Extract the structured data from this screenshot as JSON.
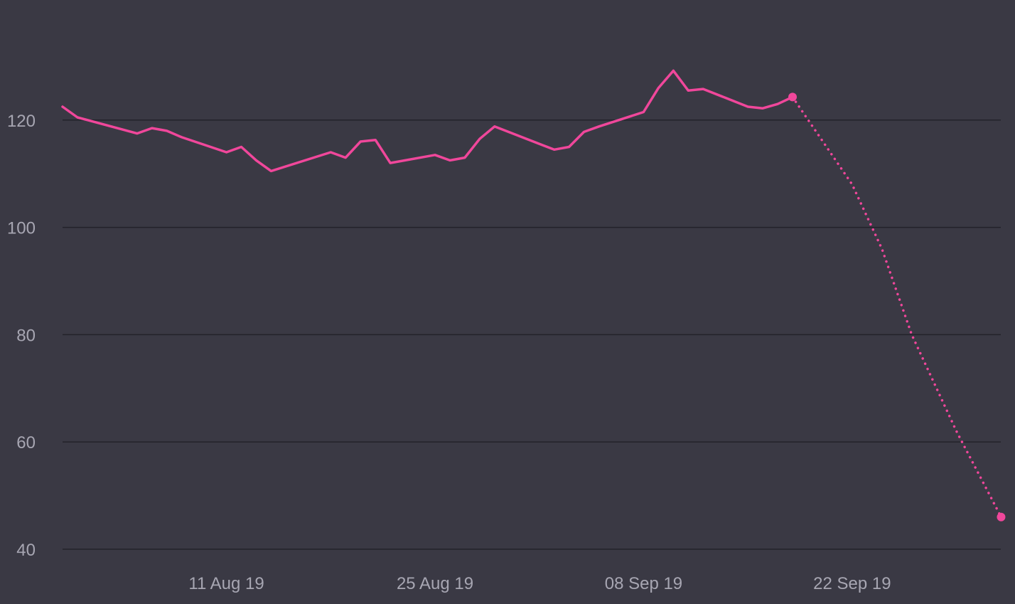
{
  "chart_data": {
    "type": "line",
    "title": "",
    "xlabel": "",
    "ylabel": "",
    "grid": true,
    "legend": "none",
    "colors": {
      "background": "#3a3944",
      "series": "#f0479b",
      "grid": "#23222a",
      "tick_text": "#a7a6b2"
    },
    "ylim": [
      40,
      130
    ],
    "xlim": [
      "2019-07-31",
      "2019-10-03"
    ],
    "y_ticks": [
      {
        "value": 40,
        "label": "40"
      },
      {
        "value": 60,
        "label": "60"
      },
      {
        "value": 80,
        "label": "80"
      },
      {
        "value": 100,
        "label": "100"
      },
      {
        "value": 120,
        "label": "120"
      }
    ],
    "x_ticks": [
      {
        "date": "2019-08-11",
        "label": "11 Aug 19"
      },
      {
        "date": "2019-08-25",
        "label": "25 Aug 19"
      },
      {
        "date": "2019-09-08",
        "label": "08 Sep 19"
      },
      {
        "date": "2019-09-22",
        "label": "22 Sep 19"
      }
    ],
    "series": [
      {
        "style": "solid",
        "points": [
          {
            "x": "2019-07-31",
            "y": 122.5
          },
          {
            "x": "2019-08-01",
            "y": 120.5
          },
          {
            "x": "2019-08-05",
            "y": 117.5
          },
          {
            "x": "2019-08-06",
            "y": 118.5
          },
          {
            "x": "2019-08-07",
            "y": 118.0
          },
          {
            "x": "2019-08-08",
            "y": 116.8
          },
          {
            "x": "2019-08-11",
            "y": 114.0
          },
          {
            "x": "2019-08-12",
            "y": 115.0
          },
          {
            "x": "2019-08-13",
            "y": 112.5
          },
          {
            "x": "2019-08-14",
            "y": 110.5
          },
          {
            "x": "2019-08-18",
            "y": 114.0
          },
          {
            "x": "2019-08-19",
            "y": 113.0
          },
          {
            "x": "2019-08-20",
            "y": 116.0
          },
          {
            "x": "2019-08-21",
            "y": 116.3
          },
          {
            "x": "2019-08-22",
            "y": 112.0
          },
          {
            "x": "2019-08-25",
            "y": 113.5
          },
          {
            "x": "2019-08-26",
            "y": 112.5
          },
          {
            "x": "2019-08-27",
            "y": 113.0
          },
          {
            "x": "2019-08-28",
            "y": 116.5
          },
          {
            "x": "2019-08-29",
            "y": 118.8
          },
          {
            "x": "2019-09-02",
            "y": 114.5
          },
          {
            "x": "2019-09-03",
            "y": 115.0
          },
          {
            "x": "2019-09-04",
            "y": 117.8
          },
          {
            "x": "2019-09-05",
            "y": 118.8
          },
          {
            "x": "2019-09-08",
            "y": 121.5
          },
          {
            "x": "2019-09-09",
            "y": 126.0
          },
          {
            "x": "2019-09-10",
            "y": 129.2
          },
          {
            "x": "2019-09-11",
            "y": 125.5
          },
          {
            "x": "2019-09-12",
            "y": 125.8
          },
          {
            "x": "2019-09-15",
            "y": 122.5
          },
          {
            "x": "2019-09-16",
            "y": 122.2
          },
          {
            "x": "2019-09-17",
            "y": 123.0
          },
          {
            "x": "2019-09-18",
            "y": 124.3
          }
        ]
      },
      {
        "style": "dotted",
        "points": [
          {
            "x": "2019-09-18",
            "y": 124.3
          },
          {
            "x": "2019-09-22",
            "y": 108.0
          },
          {
            "x": "2019-09-24",
            "y": 96.0
          },
          {
            "x": "2019-09-26",
            "y": 80.0
          },
          {
            "x": "2019-09-29",
            "y": 62.0
          },
          {
            "x": "2019-10-02",
            "y": 46.0
          }
        ]
      }
    ],
    "markers": [
      {
        "x": "2019-09-18",
        "y": 124.3
      },
      {
        "x": "2019-10-02",
        "y": 46.0
      }
    ]
  }
}
